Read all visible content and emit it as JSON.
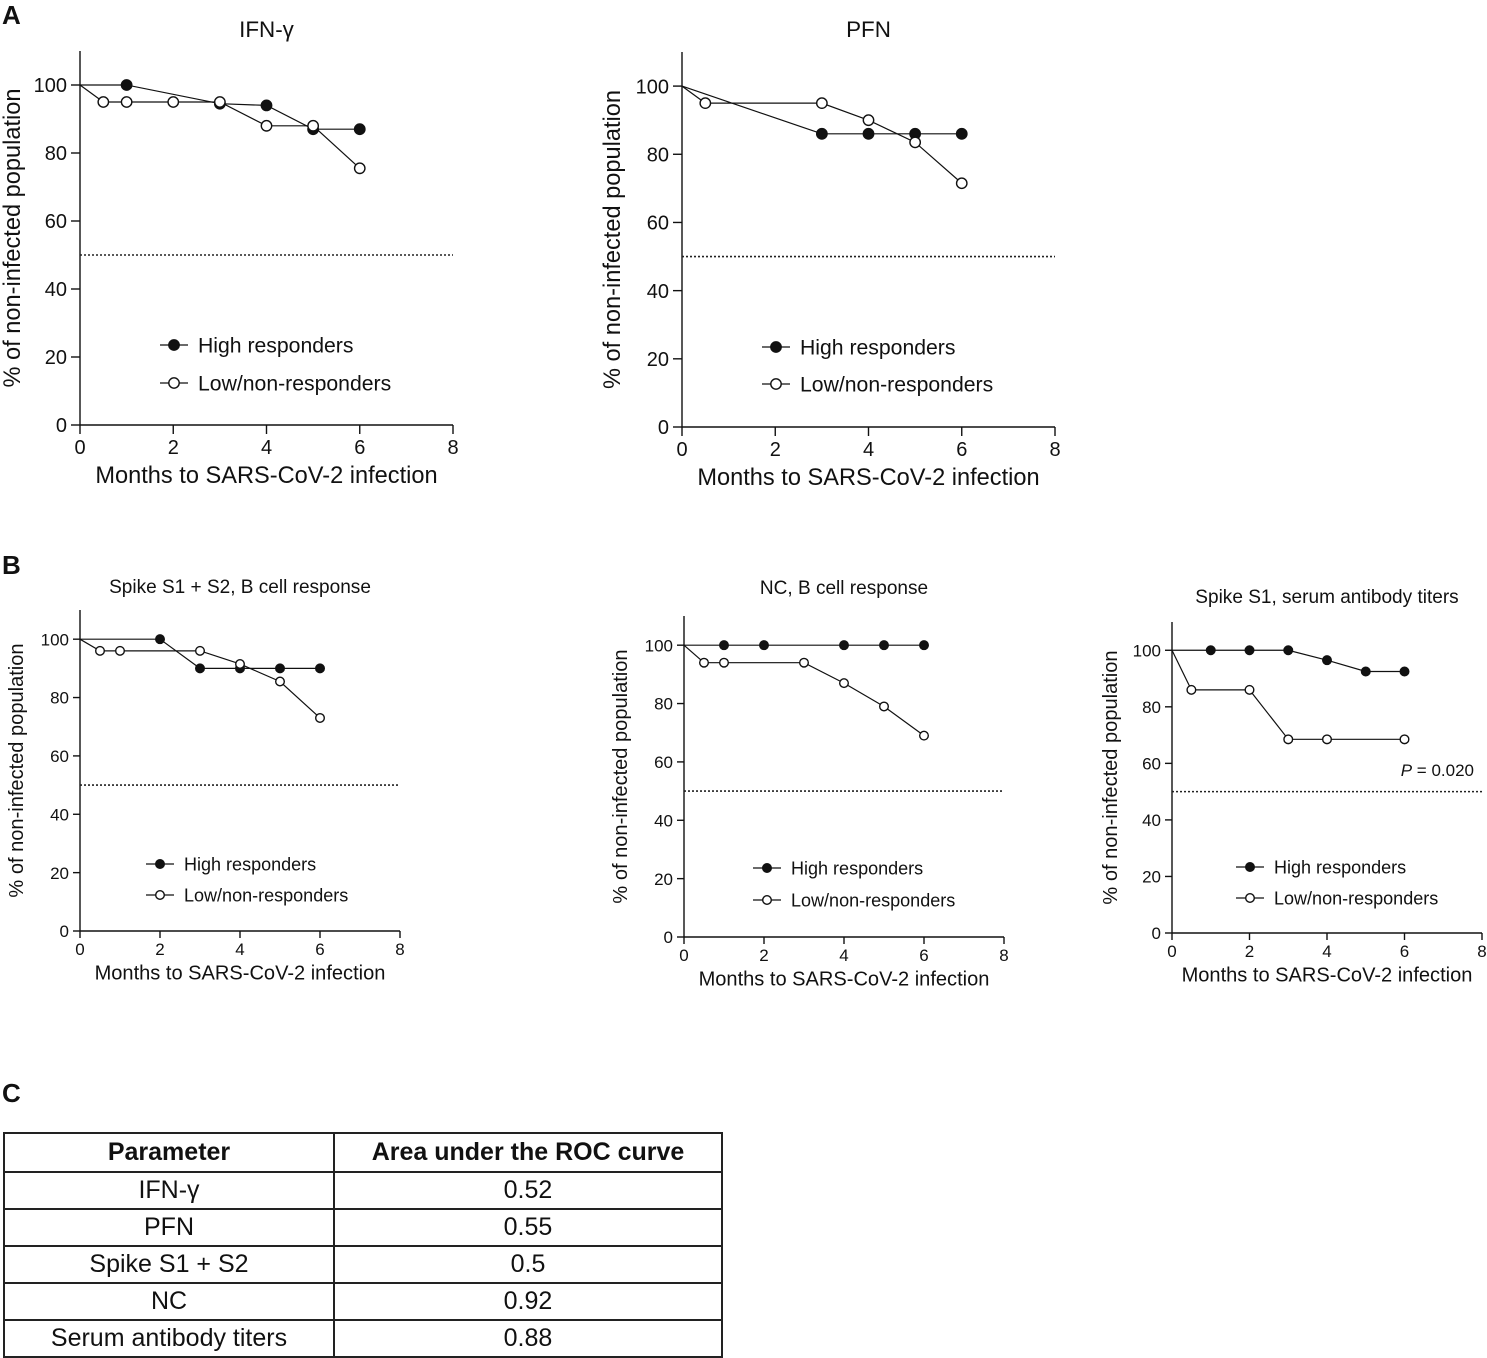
{
  "panel_labels": {
    "a": "A",
    "b": "B",
    "c": "C"
  },
  "legend": {
    "high": "High responders",
    "low": "Low/non-responders"
  },
  "colors": {
    "ink": "#111111",
    "reference_line": "#222222"
  },
  "chart_data": [
    {
      "panel": "A",
      "type": "line",
      "title": "IFN-γ",
      "xlabel": "Months to SARS-CoV-2 infection",
      "ylabel": "% of non-infected population",
      "xlim": [
        0,
        8
      ],
      "ylim": [
        0,
        110
      ],
      "xticks": [
        0,
        2,
        4,
        6,
        8
      ],
      "yticks": [
        0,
        20,
        40,
        60,
        80,
        100
      ],
      "reference_line": 50,
      "annotation": null,
      "series": [
        {
          "name": "High responders",
          "marker": "filled",
          "x": [
            0,
            1,
            3,
            4,
            5,
            6
          ],
          "y": [
            100,
            100,
            94.5,
            94,
            87,
            87
          ]
        },
        {
          "name": "Low/non-responders",
          "marker": "open",
          "x": [
            0,
            0.5,
            1,
            2,
            3,
            4,
            5,
            6
          ],
          "y": [
            100,
            95,
            95,
            95,
            95,
            88,
            88,
            75.5
          ]
        }
      ]
    },
    {
      "panel": "A",
      "type": "line",
      "title": "PFN",
      "xlabel": "Months to SARS-CoV-2 infection",
      "ylabel": "% of non-infected population",
      "xlim": [
        0,
        8
      ],
      "ylim": [
        0,
        110
      ],
      "xticks": [
        0,
        2,
        4,
        6,
        8
      ],
      "yticks": [
        0,
        20,
        40,
        60,
        80,
        100
      ],
      "reference_line": 50,
      "annotation": null,
      "series": [
        {
          "name": "High responders",
          "marker": "filled",
          "x": [
            0,
            3,
            4,
            5,
            6
          ],
          "y": [
            100,
            86,
            86,
            86,
            86
          ]
        },
        {
          "name": "Low/non-responders",
          "marker": "open",
          "x": [
            0,
            0.5,
            3,
            4,
            5,
            6
          ],
          "y": [
            100,
            95,
            95,
            90,
            83.5,
            71.5
          ]
        }
      ]
    },
    {
      "panel": "B",
      "type": "line",
      "title": "Spike S1 + S2, B cell response",
      "xlabel": "Months to SARS-CoV-2 infection",
      "ylabel": "% of non-infected population",
      "xlim": [
        0,
        8
      ],
      "ylim": [
        0,
        110
      ],
      "xticks": [
        0,
        2,
        4,
        6,
        8
      ],
      "yticks": [
        0,
        20,
        40,
        60,
        80,
        100
      ],
      "reference_line": 50,
      "annotation": null,
      "series": [
        {
          "name": "High responders",
          "marker": "filled",
          "x": [
            0,
            2,
            3,
            4,
            5,
            6
          ],
          "y": [
            100,
            100,
            90,
            90,
            90,
            90
          ]
        },
        {
          "name": "Low/non-responders",
          "marker": "open",
          "x": [
            0,
            0.5,
            1,
            3,
            4,
            5,
            6
          ],
          "y": [
            100,
            96,
            96,
            96,
            91.5,
            85.5,
            73
          ]
        }
      ]
    },
    {
      "panel": "B",
      "type": "line",
      "title": "NC, B cell response",
      "xlabel": "Months to SARS-CoV-2 infection",
      "ylabel": "% of non-infected population",
      "xlim": [
        0,
        8
      ],
      "ylim": [
        0,
        110
      ],
      "xticks": [
        0,
        2,
        4,
        6,
        8
      ],
      "yticks": [
        0,
        20,
        40,
        60,
        80,
        100
      ],
      "reference_line": 50,
      "annotation": null,
      "series": [
        {
          "name": "High responders",
          "marker": "filled",
          "x": [
            0,
            1,
            2,
            4,
            5,
            6
          ],
          "y": [
            100,
            100,
            100,
            100,
            100,
            100
          ]
        },
        {
          "name": "Low/non-responders",
          "marker": "open",
          "x": [
            0,
            0.5,
            1,
            3,
            4,
            5,
            6
          ],
          "y": [
            100,
            94,
            94,
            94,
            87,
            79,
            69
          ]
        }
      ]
    },
    {
      "panel": "B",
      "type": "line",
      "title": "Spike S1, serum antibody titers",
      "xlabel": "Months to SARS-CoV-2 infection",
      "ylabel": "% of non-infected population",
      "xlim": [
        0,
        8
      ],
      "ylim": [
        0,
        110
      ],
      "xticks": [
        0,
        2,
        4,
        6,
        8
      ],
      "yticks": [
        0,
        20,
        40,
        60,
        80,
        100
      ],
      "reference_line": 50,
      "annotation": {
        "label": "P",
        "text": " = 0.020"
      },
      "series": [
        {
          "name": "High responders",
          "marker": "filled",
          "x": [
            0,
            1,
            2,
            3,
            4,
            5,
            6
          ],
          "y": [
            100,
            100,
            100,
            100,
            96.5,
            92.5,
            92.5
          ]
        },
        {
          "name": "Low/non-responders",
          "marker": "open",
          "x": [
            0,
            0.5,
            2,
            3,
            4,
            6
          ],
          "y": [
            100,
            86,
            86,
            68.5,
            68.5,
            68.5
          ]
        }
      ]
    }
  ],
  "roc_table": {
    "headers": [
      "Parameter",
      "Area under the ROC curve"
    ],
    "rows": [
      [
        "IFN-γ",
        "0.52"
      ],
      [
        "PFN",
        "0.55"
      ],
      [
        "Spike S1 + S2",
        "0.5"
      ],
      [
        "NC",
        "0.92"
      ],
      [
        "Serum antibody titers",
        "0.88"
      ]
    ]
  }
}
